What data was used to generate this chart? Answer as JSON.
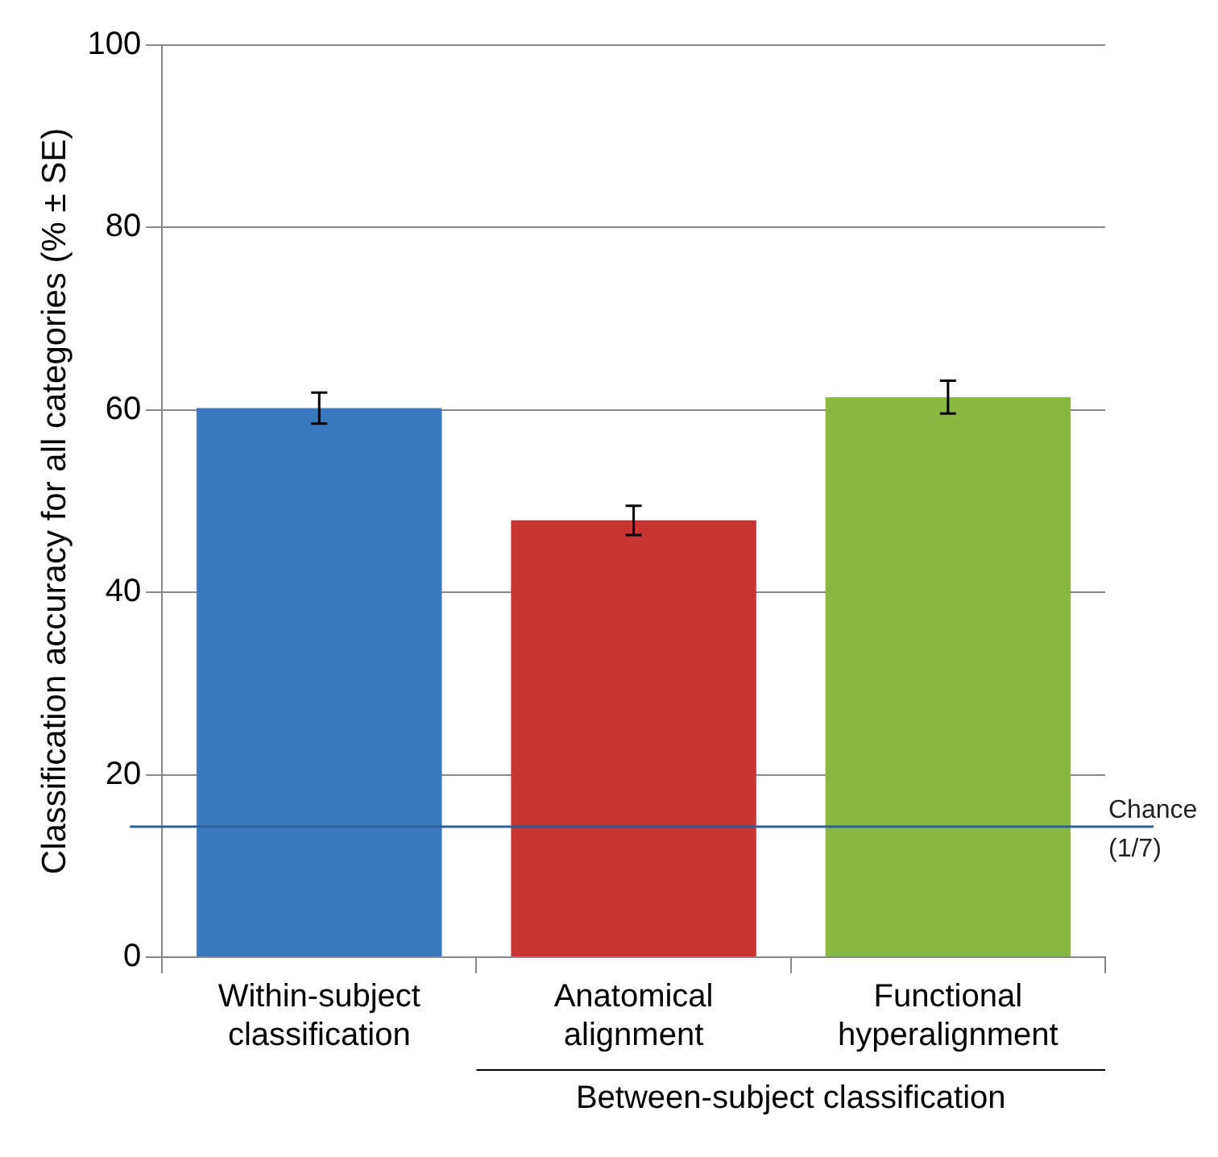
{
  "chart_data": {
    "type": "bar",
    "ylabel": "Classification accuracy for all categories (% ± SE)",
    "categories": [
      "Within-subject classification",
      "Anatomical alignment",
      "Functional hyperalignment"
    ],
    "values": [
      60.2,
      47.9,
      61.4
    ],
    "colors": [
      "#3a78bf",
      "#c93535",
      "#8ab943"
    ],
    "errors": [
      1.7,
      1.6,
      1.8
    ],
    "ylim": [
      0,
      100
    ],
    "yticks": [
      0,
      20,
      40,
      60,
      80,
      100
    ],
    "grid": "y",
    "ref_lines": [
      {
        "axis": "y",
        "value": 14.3,
        "label": "Chance (1/7)",
        "color": "#2f5f96"
      }
    ],
    "annotations": [
      "Between-subject classification"
    ]
  }
}
